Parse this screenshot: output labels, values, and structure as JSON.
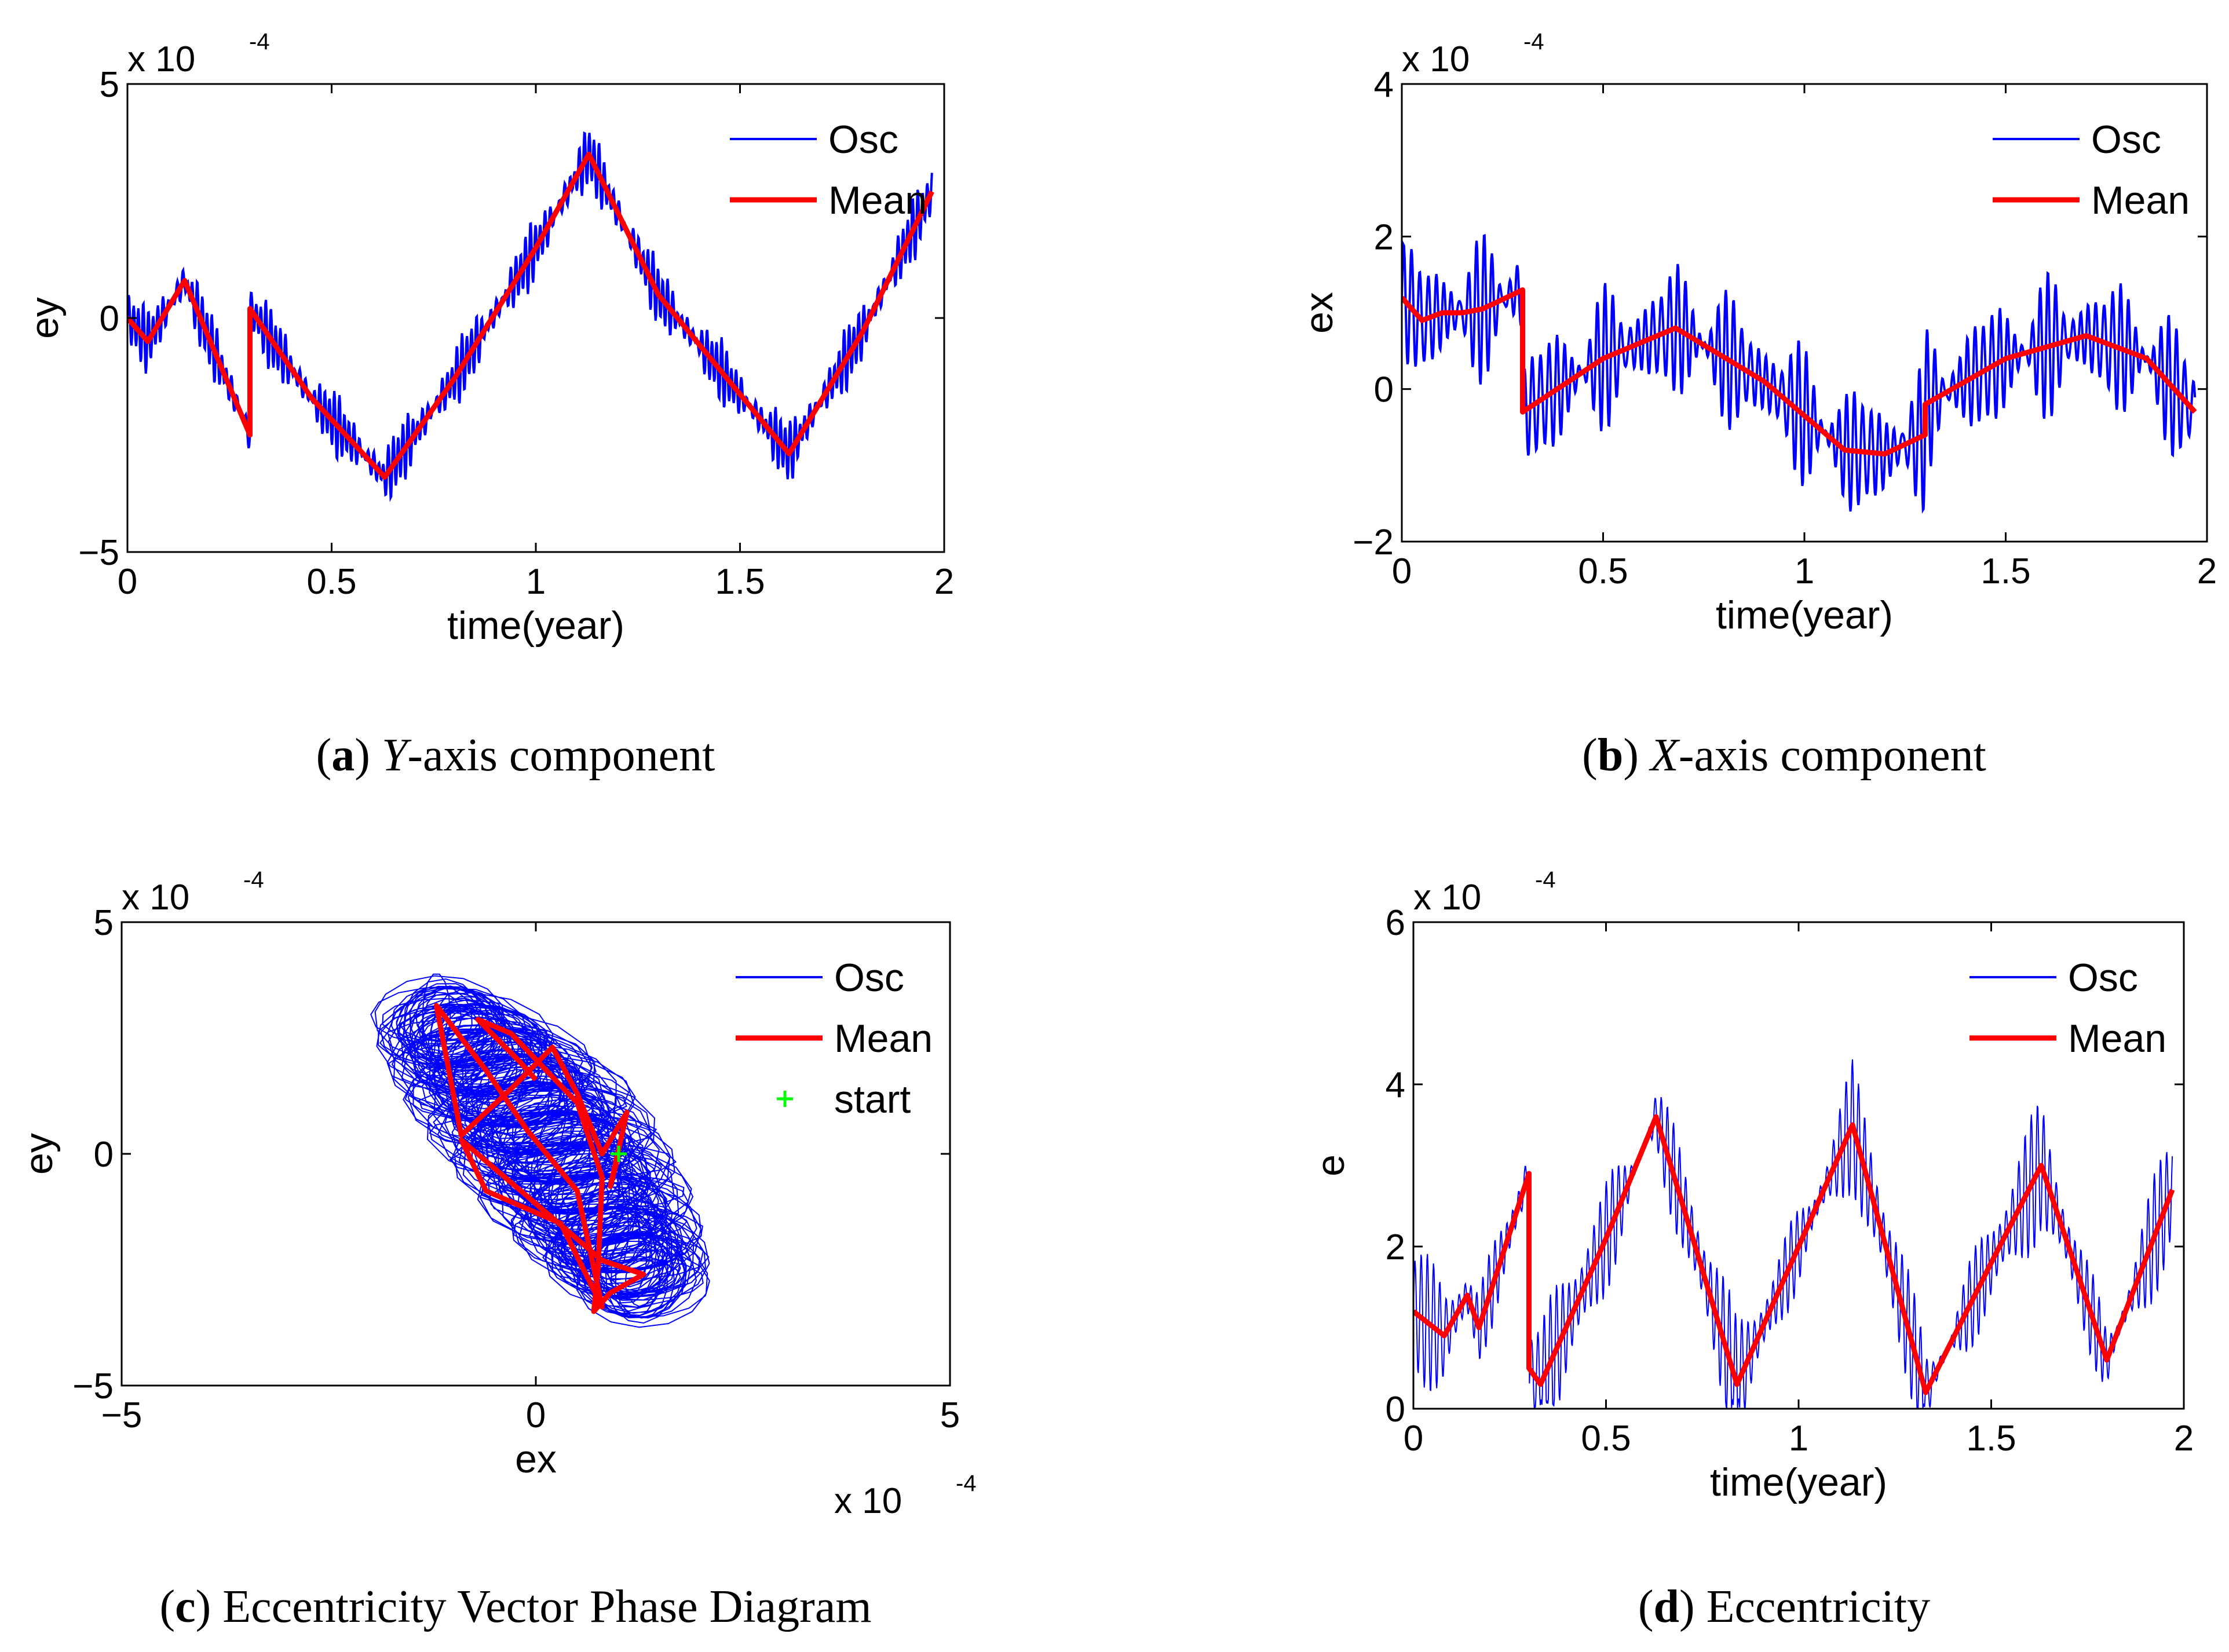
{
  "colors": {
    "osc": "#0000ff",
    "mean": "#ff0000",
    "start": "#00ff00"
  },
  "chart_data": [
    {
      "id": "a",
      "type": "line",
      "caption_letter": "a",
      "caption_ital": "Y",
      "caption_rest": "-axis component",
      "xlabel": "time(year)",
      "ylabel": "ey",
      "multiplier": "x 10",
      "multiplier_exp": "-4",
      "xlim": [
        0,
        2
      ],
      "ylim": [
        -5,
        5
      ],
      "xticks": [
        "0",
        "0.5",
        "1",
        "1.5",
        "2"
      ],
      "yticks": [
        "−5",
        "0",
        "5"
      ],
      "legend": [
        {
          "name": "Osc",
          "kind": "osc"
        },
        {
          "name": "Mean",
          "kind": "mean"
        }
      ],
      "series": [
        {
          "name": "Mean",
          "x": [
            0,
            0.05,
            0.14,
            0.3,
            0.3,
            0.45,
            0.63,
            0.8,
            1.0,
            1.13,
            1.3,
            1.45,
            1.62,
            1.8,
            1.97
          ],
          "y": [
            0,
            -0.5,
            0.8,
            -2.5,
            0.2,
            -1.7,
            -3.4,
            -1.3,
            1.5,
            3.5,
            0.5,
            -1.1,
            -2.9,
            -0.3,
            2.7
          ]
        },
        {
          "name": "Osc",
          "x": [
            0,
            0.05,
            0.14,
            0.3,
            0.3,
            0.45,
            0.63,
            0.8,
            1.0,
            1.13,
            1.3,
            1.45,
            1.62,
            1.8,
            1.97
          ],
          "y": [
            0,
            -0.5,
            0.8,
            -2.5,
            0.2,
            -1.7,
            -3.4,
            -1.3,
            1.5,
            3.5,
            0.5,
            -1.1,
            -2.9,
            -0.3,
            2.7
          ],
          "amp": 0.6,
          "period": 0.012
        }
      ]
    },
    {
      "id": "b",
      "type": "line",
      "caption_letter": "b",
      "caption_ital": "X",
      "caption_rest": "-axis component",
      "xlabel": "time(year)",
      "ylabel": "ex",
      "multiplier": "x 10",
      "multiplier_exp": "-4",
      "xlim": [
        0,
        2
      ],
      "ylim": [
        -2,
        4
      ],
      "xticks": [
        "0",
        "0.5",
        "1",
        "1.5",
        "2"
      ],
      "yticks": [
        "−2",
        "0",
        "2",
        "4"
      ],
      "legend": [
        {
          "name": "Osc",
          "kind": "osc"
        },
        {
          "name": "Mean",
          "kind": "mean"
        }
      ],
      "series": [
        {
          "name": "Mean",
          "x": [
            0,
            0.05,
            0.1,
            0.15,
            0.2,
            0.3,
            0.3,
            0.5,
            0.68,
            0.9,
            1.1,
            1.2,
            1.3,
            1.3,
            1.5,
            1.7,
            1.85,
            1.97
          ],
          "y": [
            1.2,
            0.9,
            1.0,
            1.0,
            1.05,
            1.3,
            -0.3,
            0.4,
            0.8,
            0.1,
            -0.8,
            -0.85,
            -0.6,
            -0.2,
            0.4,
            0.7,
            0.4,
            -0.3
          ],
          "style": "mean"
        },
        {
          "name": "Osc",
          "x": [
            0,
            0.05,
            0.1,
            0.15,
            0.2,
            0.3,
            0.3,
            0.5,
            0.68,
            0.9,
            1.1,
            1.2,
            1.3,
            1.3,
            1.5,
            1.7,
            1.85,
            1.97
          ],
          "y": [
            1.2,
            0.9,
            1.0,
            1.0,
            1.05,
            1.3,
            -0.3,
            0.4,
            0.8,
            0.1,
            -0.8,
            -0.85,
            -0.6,
            -0.2,
            0.4,
            0.7,
            0.4,
            -0.3
          ],
          "amp": 0.8,
          "period": 0.02
        }
      ]
    },
    {
      "id": "c",
      "type": "scatter",
      "caption_letter": "c",
      "caption_ital": "",
      "caption_rest": " Eccentricity Vector Phase Diagram",
      "xlabel": "ex",
      "ylabel": "ey",
      "multiplier": "x 10",
      "multiplier_exp": "-4",
      "x_multiplier": "x 10",
      "x_multiplier_exp": "-4",
      "xlim": [
        -5,
        5
      ],
      "ylim": [
        -5,
        5
      ],
      "xticks": [
        "−5",
        "0",
        "5"
      ],
      "yticks": [
        "−5",
        "0",
        "5"
      ],
      "legend": [
        {
          "name": "Osc",
          "kind": "osc"
        },
        {
          "name": "Mean",
          "kind": "mean"
        },
        {
          "name": "start",
          "kind": "start"
        }
      ],
      "series": [
        {
          "name": "Mean",
          "x": [
            1.0,
            0.9,
            1.1,
            0.8,
            0.5,
            0.2,
            -0.3,
            -0.9,
            -1.2,
            -0.6,
            -0.1,
            0.5,
            0.8,
            0.3,
            -0.6,
            -0.9,
            0.8,
            1.3,
            0.9,
            0.7,
            0.75,
            0.8,
            0.5,
            -0.3,
            -0.7,
            -0.2,
            0.0
          ],
          "y": [
            0.0,
            -0.7,
            0.9,
            0.0,
            1.3,
            2.3,
            1.4,
            0.4,
            3.2,
            1.8,
            0.5,
            -0.8,
            -3.3,
            -1.5,
            -0.8,
            0.3,
            -2.3,
            -2.6,
            -3.0,
            -3.4,
            -2.5,
            -0.5,
            1.1,
            2.6,
            2.9,
            2.0,
            1.6
          ]
        }
      ],
      "osc_cloud": {
        "center_x": [
          -1.2,
          -0.7,
          -0.2,
          0.2,
          0.6,
          1.0,
          1.3
        ],
        "center_y": [
          3.0,
          2.2,
          1.2,
          0.2,
          -0.9,
          -2.0,
          -2.8
        ],
        "radius_x": [
          0.8,
          1.2,
          1.4,
          1.4,
          1.3,
          1.1,
          0.8
        ],
        "radius_y": [
          0.9,
          1.1,
          1.2,
          1.2,
          1.2,
          1.1,
          1.0
        ]
      },
      "start_point": {
        "x": 1.0,
        "y": 0.0
      }
    },
    {
      "id": "d",
      "type": "line",
      "caption_letter": "d",
      "caption_ital": "",
      "caption_rest": " Eccentricity",
      "xlabel": "time(year)",
      "ylabel": "e",
      "multiplier": "x 10",
      "multiplier_exp": "-4",
      "xlim": [
        0,
        2
      ],
      "ylim": [
        0,
        6
      ],
      "xticks": [
        "0",
        "0.5",
        "1",
        "1.5",
        "2"
      ],
      "yticks": [
        "0",
        "2",
        "4",
        "6"
      ],
      "legend": [
        {
          "name": "Osc",
          "kind": "osc"
        },
        {
          "name": "Mean",
          "kind": "mean"
        }
      ],
      "series": [
        {
          "name": "Mean",
          "x": [
            0,
            0.08,
            0.14,
            0.17,
            0.3,
            0.3,
            0.33,
            0.5,
            0.63,
            0.84,
            1.0,
            1.14,
            1.33,
            1.5,
            1.63,
            1.8,
            1.97
          ],
          "y": [
            1.2,
            0.9,
            1.4,
            1.0,
            2.9,
            0.5,
            0.3,
            2.1,
            3.6,
            0.3,
            2.0,
            3.5,
            0.2,
            1.8,
            3.0,
            0.6,
            2.7
          ]
        },
        {
          "name": "Osc",
          "x": [
            0,
            0.08,
            0.14,
            0.17,
            0.3,
            0.3,
            0.33,
            0.5,
            0.63,
            0.84,
            1.0,
            1.14,
            1.33,
            1.5,
            1.63,
            1.8,
            1.97
          ],
          "y": [
            1.2,
            0.9,
            1.4,
            1.0,
            2.9,
            0.5,
            0.3,
            2.1,
            3.6,
            0.3,
            2.0,
            3.5,
            0.2,
            1.8,
            3.0,
            0.6,
            2.7
          ],
          "amp": 0.7,
          "period": 0.016
        }
      ]
    }
  ]
}
